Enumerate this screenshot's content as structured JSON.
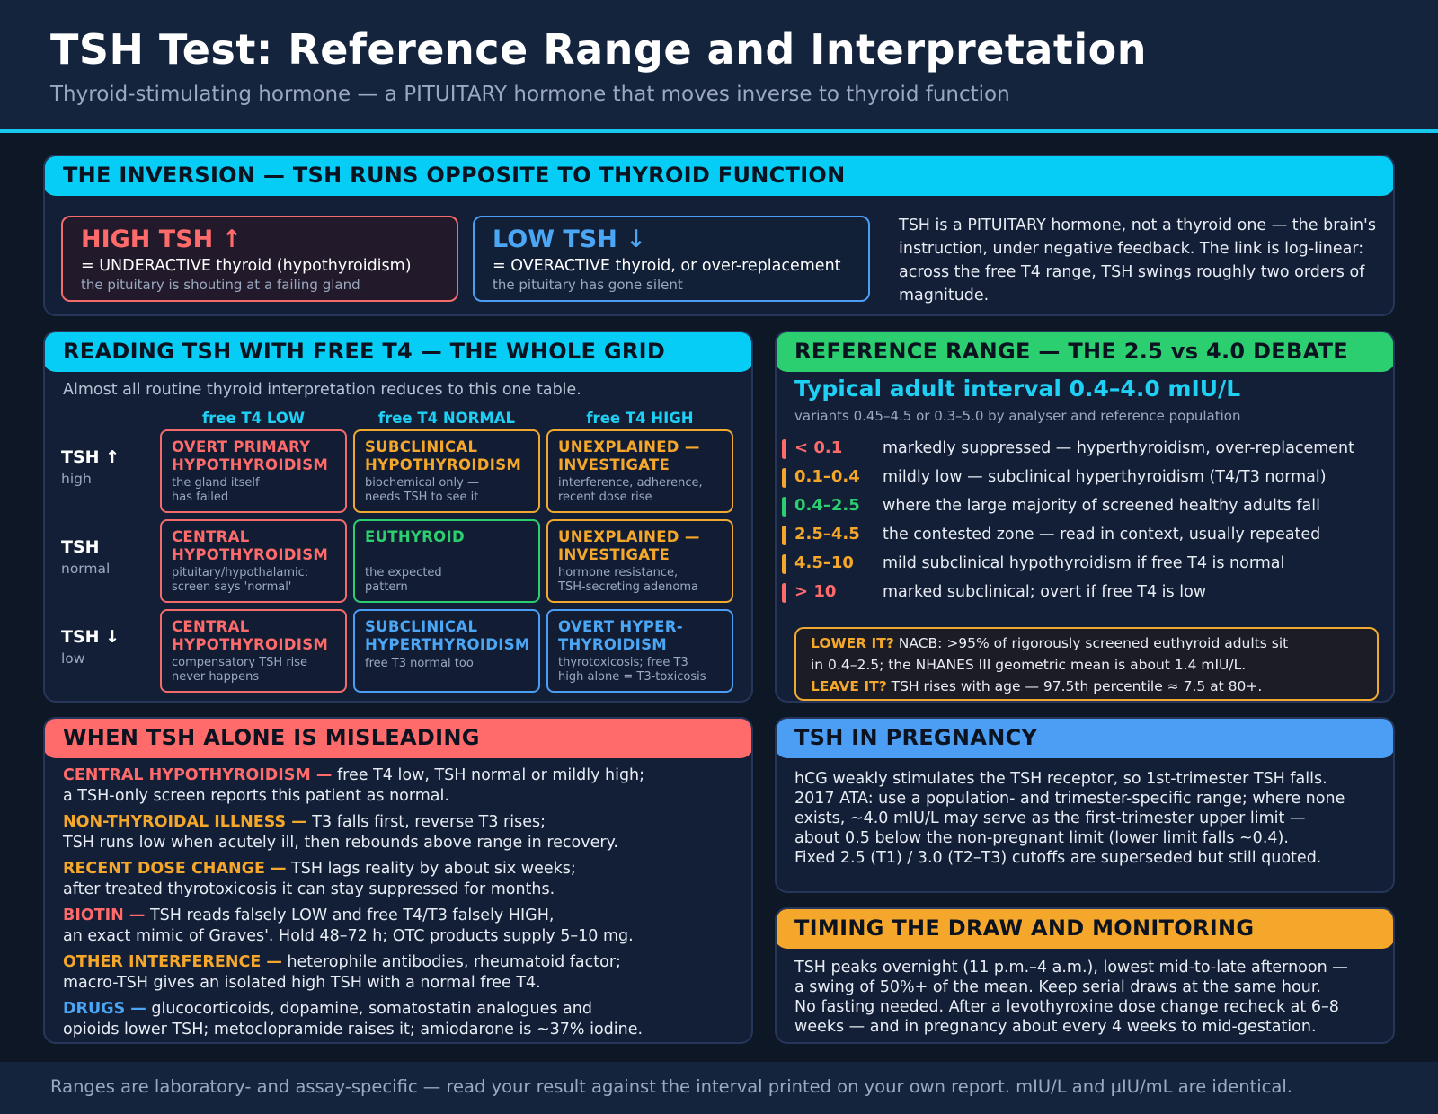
{
  "header": {
    "title": "TSH Test: Reference Range and Interpretation",
    "subtitle": "Thyroid-stimulating hormone — a PITUITARY hormone that moves inverse to thyroid function"
  },
  "inversion": {
    "heading": "THE INVERSION — TSH RUNS OPPOSITE TO THYROID FUNCTION",
    "high": {
      "title": "HIGH TSH ↑",
      "line": "= UNDERACTIVE thyroid (hypothyroidism)",
      "sub": "the pituitary is shouting at a failing gland"
    },
    "low": {
      "title": "LOW TSH ↓",
      "line": "= OVERACTIVE thyroid, or over-replacement",
      "sub": "the pituitary has gone silent"
    },
    "text": "TSH is a PITUITARY hormone, not a thyroid one — the brain's instruction, under negative feedback. The link is log-linear: across the free T4 range, TSH swings roughly two orders of magnitude."
  },
  "grid": {
    "heading": "READING TSH WITH FREE T4 — THE WHOLE GRID",
    "intro": "Almost all routine thyroid interpretation reduces to this one table.",
    "columns": [
      "free T4 LOW",
      "free T4 NORMAL",
      "free T4 HIGH"
    ],
    "rows": [
      {
        "main": "TSH ↑",
        "sub": "high"
      },
      {
        "main": "TSH",
        "sub": "normal"
      },
      {
        "main": "TSH ↓",
        "sub": "low"
      }
    ],
    "cells": [
      [
        {
          "title": "OVERT PRIMARY\nHYPOTHYROIDISM",
          "desc": "the gland itself\nhas failed",
          "color": "#ff6b6b"
        },
        {
          "title": "SUBCLINICAL\nHYPOTHYROIDISM",
          "desc": "biochemical only —\nneeds TSH to see it",
          "color": "#f4a72b"
        },
        {
          "title": "UNEXPLAINED —\nINVESTIGATE",
          "desc": "interference, adherence,\nrecent dose rise",
          "color": "#f4a72b"
        }
      ],
      [
        {
          "title": "CENTRAL\nHYPOTHYROIDISM",
          "desc": "pituitary/hypothalamic:\nscreen says 'normal'",
          "color": "#ff6b6b"
        },
        {
          "title": "EUTHYROID",
          "desc": "the expected\npattern",
          "color": "#2ccf6f"
        },
        {
          "title": "UNEXPLAINED —\nINVESTIGATE",
          "desc": "hormone resistance,\nTSH-secreting adenoma",
          "color": "#f4a72b"
        }
      ],
      [
        {
          "title": "CENTRAL\nHYPOTHYROIDISM",
          "desc": "compensatory TSH rise\nnever happens",
          "color": "#ff6b6b"
        },
        {
          "title": "SUBCLINICAL\nHYPERTHYROIDISM",
          "desc": "free T3 normal too",
          "color": "#4ba7f6"
        },
        {
          "title": "OVERT HYPER-\nTHYROIDISM",
          "desc": "thyrotoxicosis; free T3\nhigh alone = T3-toxicosis",
          "color": "#4ba7f6"
        }
      ]
    ]
  },
  "reference": {
    "heading": "REFERENCE RANGE — THE 2.5 vs 4.0 DEBATE",
    "main": "Typical adult interval 0.4–4.0 mIU/L",
    "sub": "variants 0.45–4.5 or 0.3–5.0 by analyser and reference population",
    "ranges": [
      {
        "value": "< 0.1",
        "text": "markedly suppressed — hyperthyroidism, over-replacement",
        "color": "#ff6b6b"
      },
      {
        "value": "0.1–0.4",
        "text": "mildly low — subclinical hyperthyroidism (T4/T3 normal)",
        "color": "#f4a72b"
      },
      {
        "value": "0.4–2.5",
        "text": "where the large majority of screened healthy adults fall",
        "color": "#2ccf6f"
      },
      {
        "value": "2.5–4.5",
        "text": "the contested zone — read in context, usually repeated",
        "color": "#f4a72b"
      },
      {
        "value": "4.5–10",
        "text": "mild subclinical hypothyroidism if free T4 is normal",
        "color": "#f4a72b"
      },
      {
        "value": "> 10",
        "text": "marked subclinical; overt if free T4 is low",
        "color": "#ff6b6b"
      }
    ],
    "callout": {
      "lower_label": "LOWER IT?",
      "lower_text": " NACB: >95% of rigorously screened euthyroid adults sit",
      "lower_text2": "in 0.4–2.5; the NHANES III geometric mean is about 1.4 mIU/L.",
      "leave_label": "LEAVE IT?",
      "leave_text": " TSH rises with age — 97.5th percentile ≈ 7.5 at 80+."
    }
  },
  "misleading": {
    "heading": "WHEN TSH ALONE IS MISLEADING",
    "items": [
      {
        "label": "CENTRAL HYPOTHYROIDISM —",
        "text": "  free T4 low, TSH normal or mildly high;\na TSH-only screen reports this patient as normal.",
        "color": "#ff6b6b"
      },
      {
        "label": "NON-THYROIDAL ILLNESS —",
        "text": " T3 falls first, reverse T3 rises;\nTSH runs low when acutely ill, then rebounds above range in recovery.",
        "color": "#f4a72b"
      },
      {
        "label": "RECENT DOSE CHANGE —",
        "text": " TSH lags reality by about six weeks;\nafter treated thyrotoxicosis it can stay suppressed for months.",
        "color": "#f4a72b"
      },
      {
        "label": "BIOTIN —",
        "text": " TSH reads falsely LOW and free T4/T3 falsely HIGH,\nan exact mimic of Graves'. Hold 48–72 h; OTC products supply 5–10 mg.",
        "color": "#ff6b6b"
      },
      {
        "label": "OTHER INTERFERENCE —",
        "text": " heterophile antibodies, rheumatoid factor;\nmacro-TSH gives an isolated high TSH with a normal free T4.",
        "color": "#f4a72b"
      },
      {
        "label": "DRUGS —",
        "text": " glucocorticoids, dopamine, somatostatin analogues and\nopioids lower TSH; metoclopramide raises it; amiodarone is ~37% iodine.",
        "color": "#4ba7f6"
      }
    ]
  },
  "pregnancy": {
    "heading": "TSH IN PREGNANCY",
    "text": "hCG weakly stimulates the TSH receptor, so 1st-trimester TSH falls.\n2017 ATA: use a population- and trimester-specific range; where none\nexists, ~4.0 mIU/L may serve as the first-trimester upper limit —\nabout 0.5 below the non-pregnant limit (lower limit falls ~0.4).\nFixed 2.5 (T1) / 3.0 (T2–T3) cutoffs are superseded but still quoted."
  },
  "timing": {
    "heading": "TIMING THE DRAW AND MONITORING",
    "text": "TSH peaks overnight (11 p.m.–4 a.m.), lowest mid-to-late afternoon —\na swing of 50%+ of the mean. Keep serial draws at the same hour.\nNo fasting needed. After a levothyroxine dose change recheck at 6–8\nweeks — and in pregnancy about every 4 weeks to mid-gestation."
  },
  "footer": {
    "text": "Ranges are laboratory- and assay-specific — read your result against the interval printed on your own report. mIU/L and µIU/mL are identical."
  }
}
